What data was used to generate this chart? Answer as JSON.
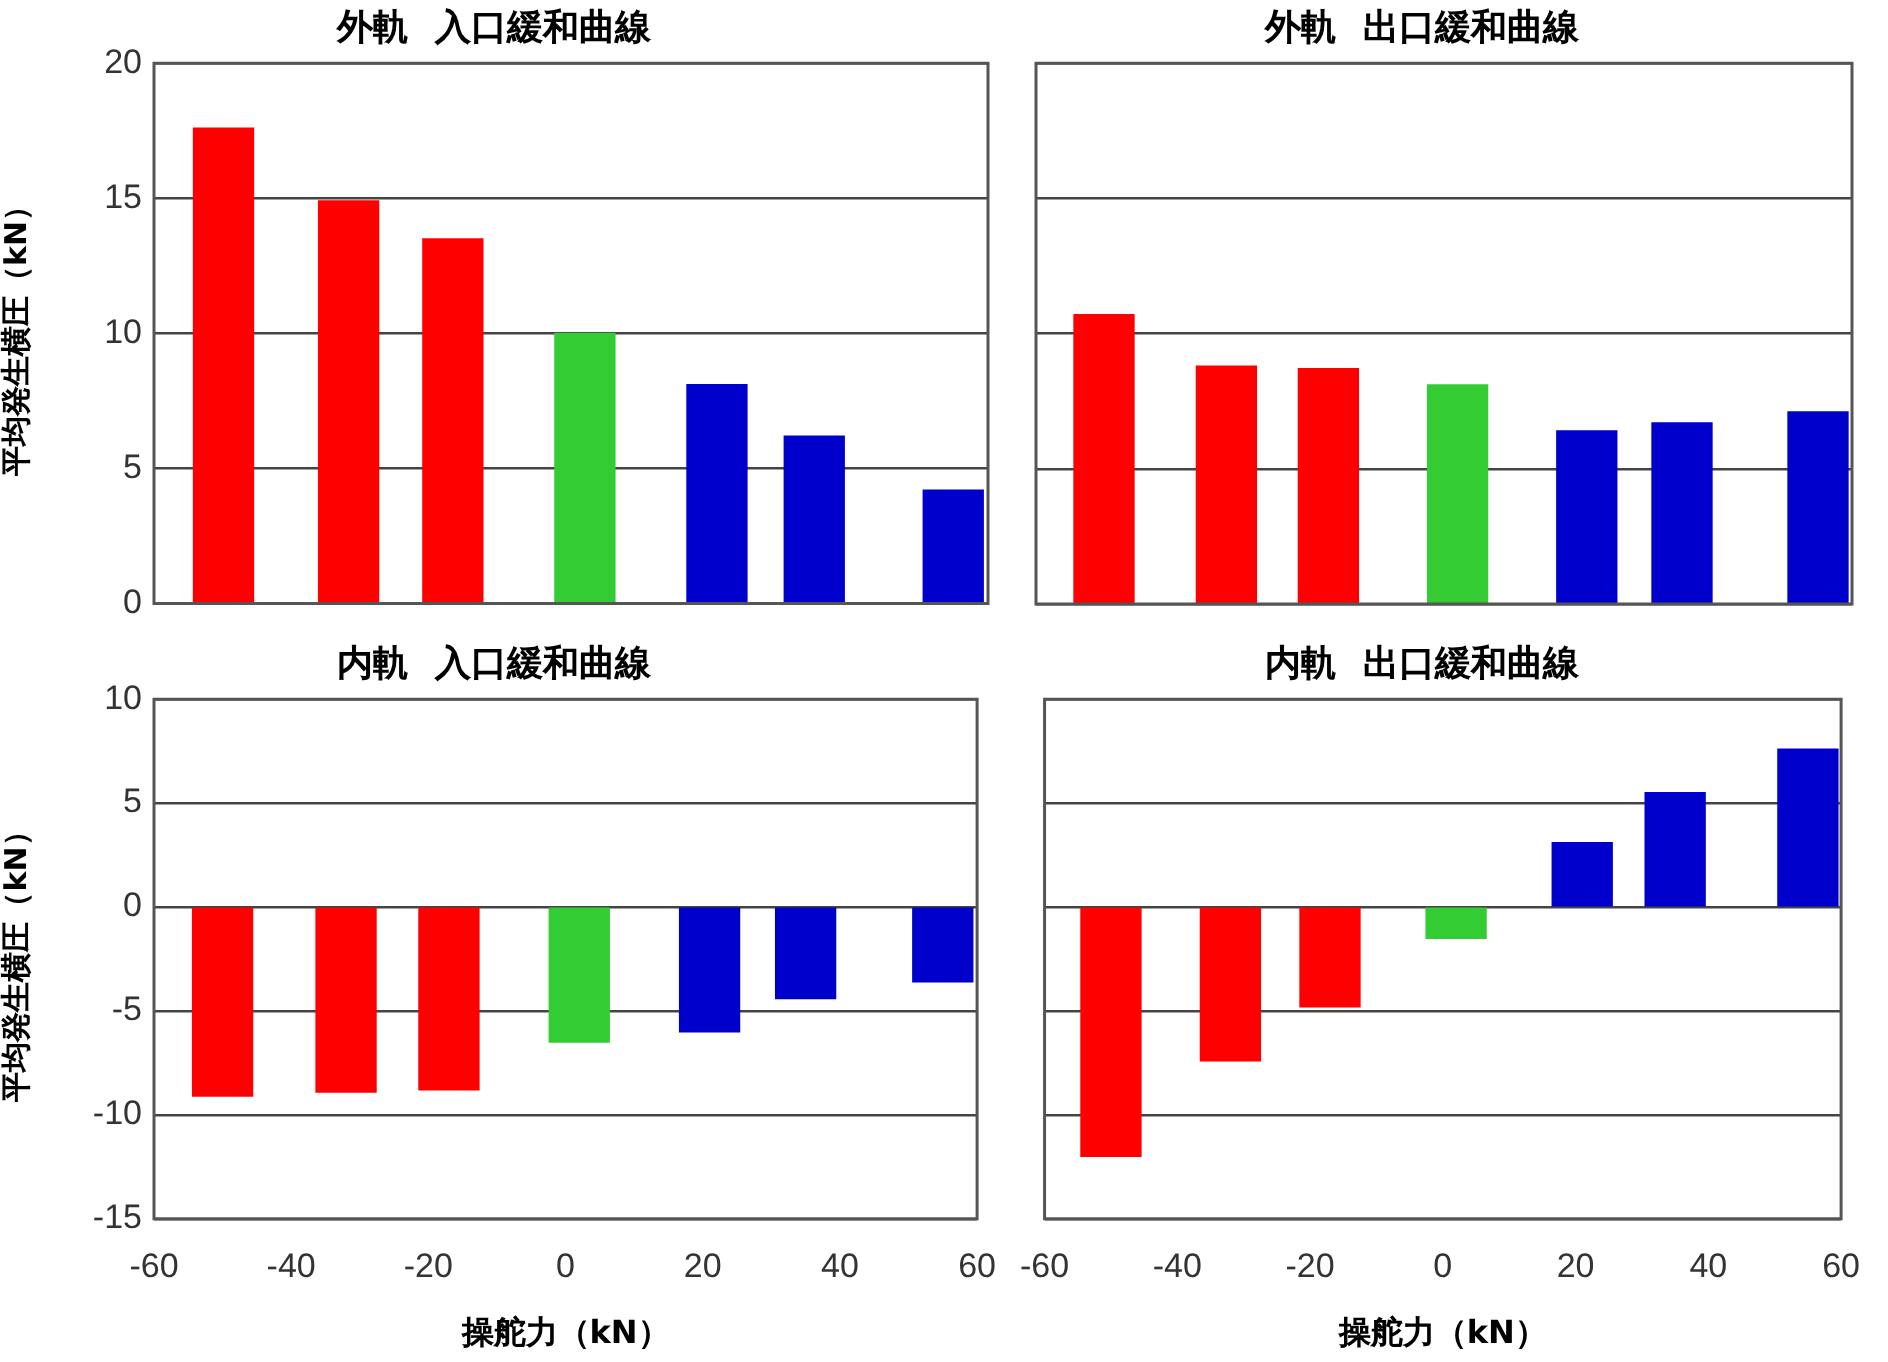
{
  "chart_data": [
    {
      "type": "bar",
      "title": "外軌  入口緩和曲線",
      "ylabel": "平均発生横圧（kN）",
      "x": [
        -50,
        -32,
        -17,
        2,
        21,
        35,
        55
      ],
      "values": [
        17.6,
        14.9,
        13.5,
        10.0,
        8.1,
        6.2,
        4.2
      ],
      "colors": [
        "#ff0000",
        "#ff0000",
        "#ff0000",
        "#33cc33",
        "#0000cc",
        "#0000cc",
        "#0000cc"
      ],
      "xlim": [
        -60,
        60
      ],
      "xticks": [
        -60,
        -40,
        -20,
        0,
        20,
        40,
        60
      ],
      "ylim": [
        0,
        20
      ],
      "yticks": [
        0,
        5,
        10,
        15,
        20
      ],
      "grid": "y",
      "tick_labels": "y"
    },
    {
      "type": "bar",
      "title": "外軌  出口緩和曲線",
      "x": [
        -50,
        -32,
        -17,
        2,
        21,
        35,
        55
      ],
      "values": [
        10.7,
        8.8,
        8.7,
        8.1,
        6.4,
        6.7,
        7.1
      ],
      "colors": [
        "#ff0000",
        "#ff0000",
        "#ff0000",
        "#33cc33",
        "#0000cc",
        "#0000cc",
        "#0000cc"
      ],
      "xlim": [
        -60,
        60
      ],
      "xticks": [
        -60,
        -40,
        -20,
        0,
        20,
        40,
        60
      ],
      "ylim": [
        0,
        20
      ],
      "yticks": [
        0,
        5,
        10,
        15,
        20
      ],
      "grid": "y",
      "tick_labels": false
    },
    {
      "type": "bar",
      "title": "内軌  入口緩和曲線",
      "xlabel": "操舵力（kN）",
      "ylabel": "平均発生横圧（kN）",
      "x": [
        -50,
        -32,
        -17,
        2,
        21,
        35,
        55
      ],
      "values": [
        -9.1,
        -8.9,
        -8.8,
        -6.5,
        -6.0,
        -4.4,
        -3.6
      ],
      "colors": [
        "#ff0000",
        "#ff0000",
        "#ff0000",
        "#33cc33",
        "#0000cc",
        "#0000cc",
        "#0000cc"
      ],
      "xlim": [
        -60,
        60
      ],
      "xticks": [
        -60,
        -40,
        -20,
        0,
        20,
        40,
        60
      ],
      "ylim": [
        -15,
        10
      ],
      "yticks": [
        -15,
        -10,
        -5,
        0,
        5,
        10
      ],
      "grid": "y"
    },
    {
      "type": "bar",
      "title": "内軌  出口緩和曲線",
      "xlabel": "操舵力（kN）",
      "x": [
        -50,
        -32,
        -17,
        2,
        21,
        35,
        55
      ],
      "values": [
        -12.0,
        -7.4,
        -4.8,
        -1.5,
        3.1,
        5.5,
        7.6
      ],
      "colors": [
        "#ff0000",
        "#ff0000",
        "#ff0000",
        "#33cc33",
        "#0000cc",
        "#0000cc",
        "#0000cc"
      ],
      "xlim": [
        -60,
        60
      ],
      "xticks": [
        -60,
        -40,
        -20,
        0,
        20,
        40,
        60
      ],
      "ylim": [
        -15,
        10
      ],
      "yticks": [
        -15,
        -10,
        -5,
        0,
        5,
        10
      ],
      "grid": "y",
      "tick_labels": "x"
    }
  ]
}
